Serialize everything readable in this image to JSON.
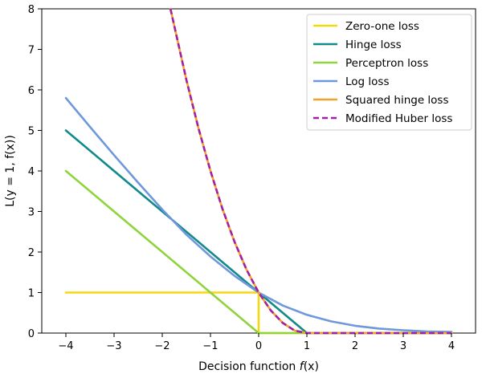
{
  "chart_data": {
    "type": "line",
    "xlabel": "Decision function f(x)",
    "xlabel_parts": {
      "text": "Decision function ",
      "var": "f",
      "rest": "(x)"
    },
    "ylabel": "L(y = 1, f(x))",
    "xlim": [
      -4.5,
      4.5
    ],
    "ylim": [
      0,
      8
    ],
    "x_ticks": [
      -4,
      -3,
      -2,
      -1,
      0,
      1,
      2,
      3,
      4
    ],
    "x_tick_labels": [
      "−4",
      "−3",
      "−2",
      "−1",
      "0",
      "1",
      "2",
      "3",
      "4"
    ],
    "y_ticks": [
      0,
      1,
      2,
      3,
      4,
      5,
      6,
      7,
      8
    ],
    "y_tick_labels": [
      "0",
      "1",
      "2",
      "3",
      "4",
      "5",
      "6",
      "7",
      "8"
    ],
    "grid": false,
    "legend_position": "top-right",
    "series": [
      {
        "name": "Zero-one loss",
        "color": "#f5d90a",
        "dash": "solid",
        "x": [
          -4,
          0,
          0,
          4
        ],
        "y": [
          1,
          1,
          0,
          0
        ]
      },
      {
        "name": "Hinge loss",
        "color": "#138a8a",
        "dash": "solid",
        "x": [
          -4,
          1,
          4
        ],
        "y": [
          5,
          0,
          0
        ]
      },
      {
        "name": "Perceptron loss",
        "color": "#8fd33d",
        "dash": "solid",
        "x": [
          -4,
          0,
          4
        ],
        "y": [
          4,
          0,
          0
        ]
      },
      {
        "name": "Log loss",
        "color": "#6f98dc",
        "dash": "solid",
        "x": [
          -4,
          -3.5,
          -3,
          -2.5,
          -2,
          -1.5,
          -1,
          -0.5,
          0,
          0.5,
          1,
          1.5,
          2,
          2.5,
          3,
          3.5,
          4
        ],
        "y": [
          5.8,
          5.09,
          4.39,
          3.71,
          3.05,
          2.43,
          1.89,
          1.41,
          1.0,
          0.68,
          0.45,
          0.29,
          0.18,
          0.11,
          0.07,
          0.04,
          0.03
        ]
      },
      {
        "name": "Squared hinge loss",
        "color": "#f0a429",
        "dash": "solid",
        "x": [
          -1.83,
          -1.5,
          -1.25,
          -1,
          -0.75,
          -0.5,
          -0.25,
          0,
          0.25,
          0.5,
          0.75,
          1,
          4
        ],
        "y": [
          8.0,
          6.25,
          5.06,
          4.0,
          3.06,
          2.25,
          1.56,
          1.0,
          0.56,
          0.25,
          0.06,
          0,
          0
        ]
      },
      {
        "name": "Modified Huber loss",
        "color": "#a020a8",
        "dash": "dashed",
        "x": [
          -1.83,
          -1.5,
          -1.25,
          -1,
          -0.75,
          -0.5,
          -0.25,
          0,
          0.25,
          0.5,
          0.75,
          1,
          4
        ],
        "y": [
          8.0,
          6.25,
          5.06,
          4.0,
          3.06,
          2.25,
          1.56,
          1.0,
          0.56,
          0.25,
          0.06,
          0,
          0
        ]
      }
    ]
  }
}
